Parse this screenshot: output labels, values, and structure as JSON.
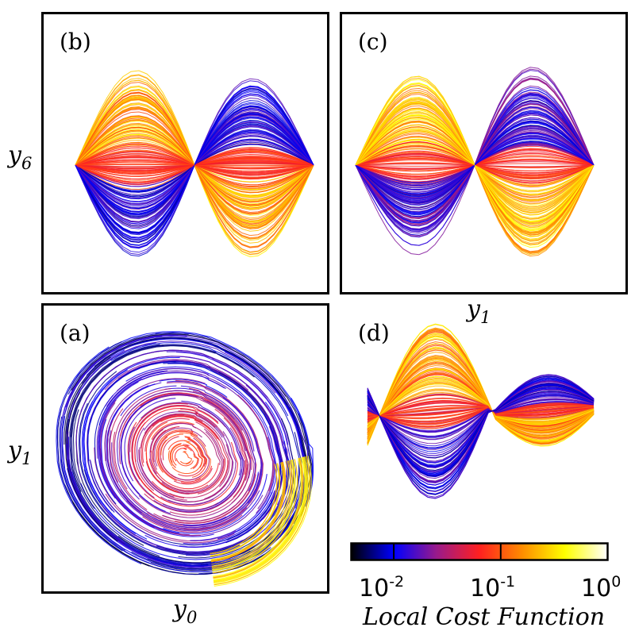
{
  "chart_data": [
    {
      "type": "scatter",
      "panel": "(a)",
      "xlabel": "y",
      "xlabel_sub": "0",
      "ylabel": "y",
      "ylabel_sub": "1",
      "description_kind": "phase-space trajectory (spiral attractor) colored by local cost",
      "color_scale": "log",
      "grid": false
    },
    {
      "type": "scatter",
      "panel": "(b)",
      "xlabel": "",
      "ylabel": "y",
      "ylabel_sub": "6",
      "description_kind": "phase-space trajectory colored by local cost",
      "color_scale": "log",
      "grid": false
    },
    {
      "type": "scatter",
      "panel": "(c)",
      "xlabel": "y",
      "xlabel_sub": "1",
      "ylabel": "",
      "description_kind": "phase-space trajectory colored by local cost",
      "color_scale": "log",
      "grid": false
    },
    {
      "type": "scatter",
      "panel": "(d)",
      "xlabel": "",
      "ylabel": "",
      "description_kind": "phase-space trajectory colored by local cost",
      "color_scale": "log",
      "grid": false
    }
  ],
  "colorbar": {
    "title": "Local Cost Function",
    "ticks": [
      {
        "base": "10",
        "exp": "-2",
        "value": 0.01
      },
      {
        "base": "10",
        "exp": "-1",
        "value": 0.1
      },
      {
        "base": "10",
        "exp": "0",
        "value": 1
      }
    ],
    "range": [
      0.004,
      1
    ],
    "colormap": [
      "#000000",
      "#0000ff",
      "#9a1a8a",
      "#ff2020",
      "#ff8c00",
      "#ffff00",
      "#ffffff"
    ]
  }
}
